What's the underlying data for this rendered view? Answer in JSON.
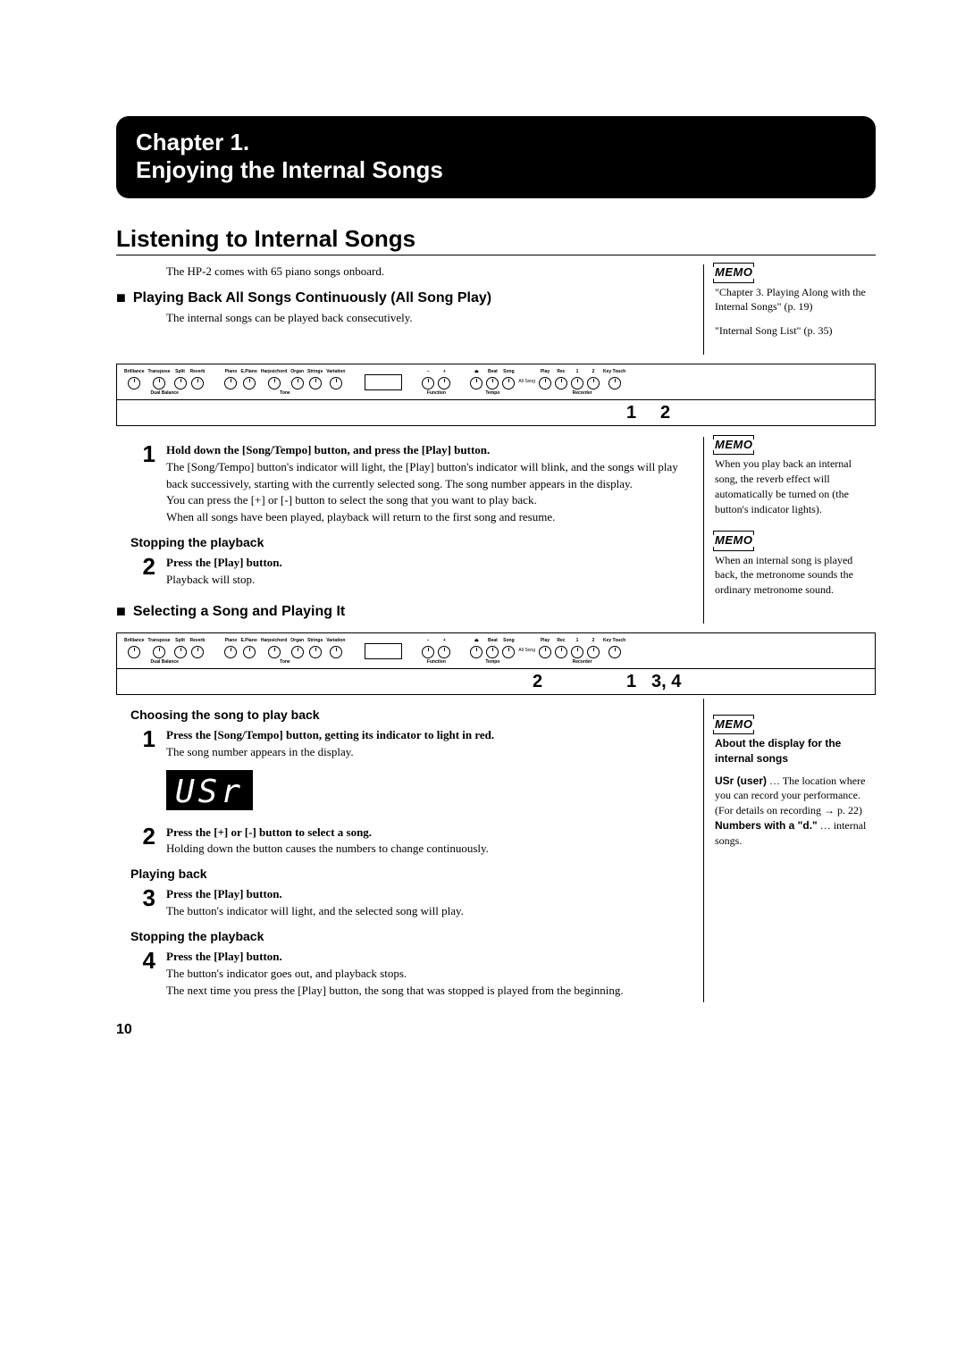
{
  "chapter": {
    "line1": "Chapter 1.",
    "line2": "Enjoying the Internal Songs"
  },
  "section1": {
    "title": "Listening to Internal Songs",
    "intro": "The HP-2 comes with 65 piano songs onboard.",
    "sub1": {
      "title": "Playing Back All Songs Continuously (All Song Play)",
      "body": "The internal songs can be played back consecutively."
    },
    "panel1_callouts": {
      "a": "1",
      "b": "2"
    },
    "step1": {
      "num": "1",
      "title": "Hold down the [Song/Tempo] button, and press the [Play] button.",
      "body": "The [Song/Tempo] button's indicator will light, the [Play] button's indicator will blink, and the songs will play back successively, starting with the currently selected song. The song number appears in the display.\nYou can press the [+] or [-] button to select the song that you want to play back.\nWhen all songs have been played, playback will return to the first song and resume."
    },
    "stop1": {
      "heading": "Stopping the playback",
      "num": "2",
      "title": "Press the [Play] button.",
      "body": "Playback will stop."
    },
    "sub2": {
      "title": "Selecting a Song and Playing It"
    },
    "panel2_callouts": {
      "a": "2",
      "b": "1",
      "c": "3, 4"
    },
    "choose": {
      "heading": "Choosing the song to play back",
      "s1_num": "1",
      "s1_title": "Press the [Song/Tempo] button, getting its indicator to light in red.",
      "s1_body": "The song number appears in the display.",
      "lcd": "USr",
      "s2_num": "2",
      "s2_title": "Press the [+] or [-] button to select a song.",
      "s2_body": "Holding down the button causes the numbers to change continuously."
    },
    "play": {
      "heading": "Playing back",
      "num": "3",
      "title": "Press the [Play] button.",
      "body": "The button's indicator will light, and the selected song will play."
    },
    "stop2": {
      "heading": "Stopping the playback",
      "num": "4",
      "title": "Press the [Play] button.",
      "body": "The button's indicator goes out, and playback stops.\nThe next time you press the [Play] button, the song that was stopped is played from the beginning."
    }
  },
  "side": {
    "memo_label": "MEMO",
    "m1a": "\"Chapter 3. Playing Along with the Internal Songs\" (p. 19)",
    "m1b": "\"Internal Song List\" (p. 35)",
    "m2": "When you play back an internal song, the reverb effect will automatically be turned on (the button's indicator lights).",
    "m3": "When an internal song is played back, the metronome sounds the ordinary metronome sound.",
    "m4_heading": "About the display for the internal songs",
    "m4_usr_label": "USr (user)",
    "m4_usr_body": " … The location where you can record your performance. (For details on recording → p. 22)",
    "m4_num_label": "Numbers with a \"d.\"",
    "m4_num_body": " … internal songs."
  },
  "panel": {
    "group1": [
      "Brilliance",
      "Transpose",
      "Split",
      "Reverb"
    ],
    "group1_under": "Dual Balance",
    "group2": [
      "Piano",
      "E.Piano",
      "Harpsichord",
      "Organ",
      "Strings",
      "Variation"
    ],
    "group2_under": "Tone",
    "minus": "−",
    "plus": "+",
    "metronome_icon": "⏏",
    "beat": "Beat",
    "song": "Song",
    "allsong": "All Song",
    "function": "Function",
    "tempo": "Tempo",
    "group3": [
      "Play",
      "Rec",
      "1",
      "2",
      "Key Touch"
    ],
    "group3_under": "Recorder"
  },
  "page_number": "10"
}
